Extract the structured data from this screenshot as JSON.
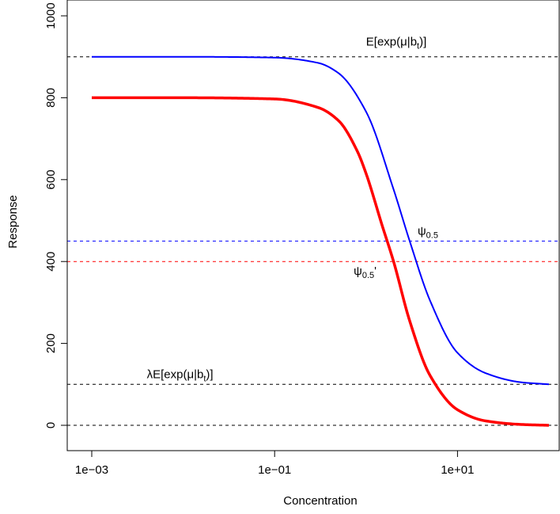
{
  "chart_data": {
    "type": "line",
    "xlabel": "Concentration",
    "ylabel": "Response",
    "x_scale": "log10",
    "xlim": [
      0.001,
      100
    ],
    "ylim": [
      0,
      1000
    ],
    "x_ticks": [
      0.001,
      0.1,
      10
    ],
    "x_tick_labels": [
      "1e−03",
      "1e−01",
      "1e+01"
    ],
    "y_ticks": [
      0,
      200,
      400,
      600,
      800,
      1000
    ],
    "y_tick_labels": [
      "0",
      "200",
      "400",
      "600",
      "800",
      "1000"
    ],
    "grid": false,
    "series": [
      {
        "color": "#0000ff",
        "line_width": "thin",
        "x": [
          0.001,
          0.01,
          0.1,
          0.3,
          0.5,
          1,
          2,
          3,
          5,
          10,
          20,
          50,
          100
        ],
        "y": [
          900,
          900,
          898,
          885,
          860,
          766,
          576,
          450,
          305,
          177,
          128,
          105,
          100
        ]
      },
      {
        "color": "#ff0000",
        "line_width": "thick",
        "x": [
          0.001,
          0.01,
          0.1,
          0.3,
          0.5,
          0.8,
          1,
          1.5,
          2,
          3,
          5,
          10,
          20,
          50,
          100
        ],
        "y": [
          800,
          800,
          797,
          776,
          744,
          670,
          615,
          488,
          400,
          255,
          122,
          38,
          11,
          2,
          0
        ]
      }
    ],
    "reference_lines": [
      {
        "y": 900,
        "color": "#000000",
        "style": "dashed"
      },
      {
        "y": 450,
        "color": "#0000ff",
        "style": "dashed"
      },
      {
        "y": 400,
        "color": "#ff0000",
        "style": "dashed"
      },
      {
        "y": 100,
        "color": "#000000",
        "style": "dashed"
      },
      {
        "y": 0,
        "color": "#000000",
        "style": "dashed"
      }
    ],
    "annotations": {
      "top": {
        "main": "E[exp(μ|b",
        "sub": "t",
        "tail": ")]",
        "x": 1,
        "y": 900
      },
      "bottom": {
        "main": "λE[exp(μ|b",
        "sub": "t",
        "tail": ")]",
        "x": 0.004,
        "y": 100
      },
      "psi_blue": {
        "main": "ψ",
        "sub": "0.5",
        "tail": "",
        "x": 3,
        "y": 450
      },
      "psi_red": {
        "main": "ψ",
        "sub": "0.5",
        "tail": "'",
        "x": 1.5,
        "y": 400
      }
    }
  }
}
